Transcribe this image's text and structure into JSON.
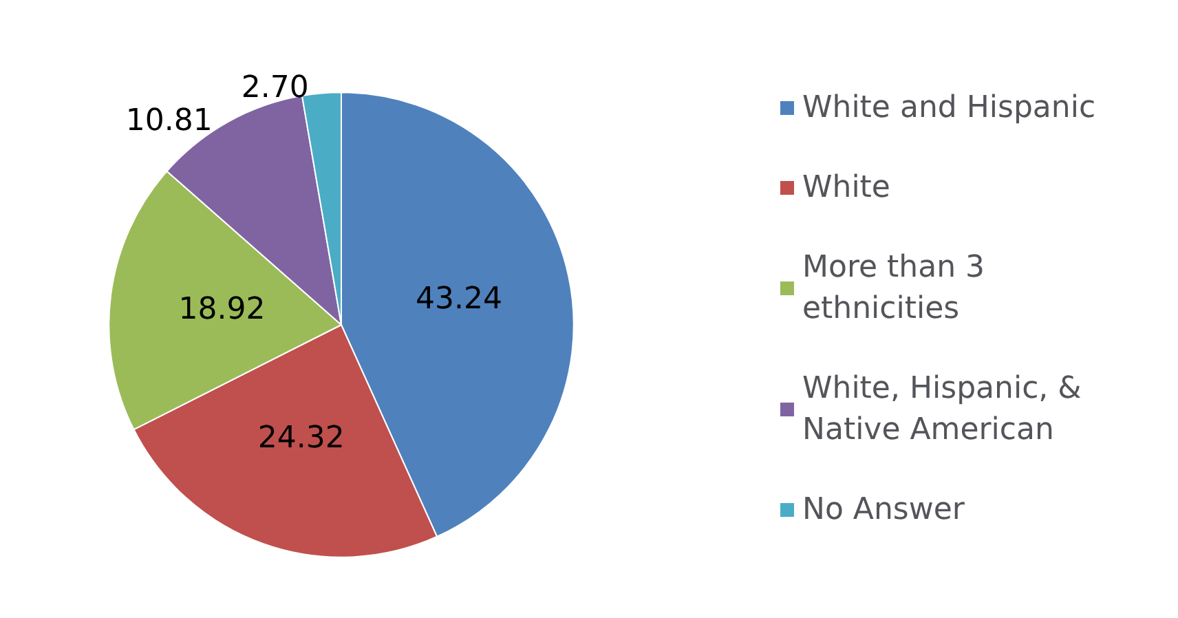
{
  "chart_data": {
    "type": "pie",
    "categories": [
      "White and Hispanic",
      "White",
      "More than 3 ethnicities",
      "White, Hispanic, & Native American",
      "No Answer"
    ],
    "values": [
      43.24,
      24.32,
      18.92,
      10.81,
      2.7
    ],
    "value_labels": [
      "43.24",
      "24.32",
      "18.92",
      "10.81",
      "2.70"
    ],
    "colors": [
      "#4f81bd",
      "#c0504d",
      "#9bbb59",
      "#8064a2",
      "#4bacc6"
    ],
    "legend": "right"
  }
}
